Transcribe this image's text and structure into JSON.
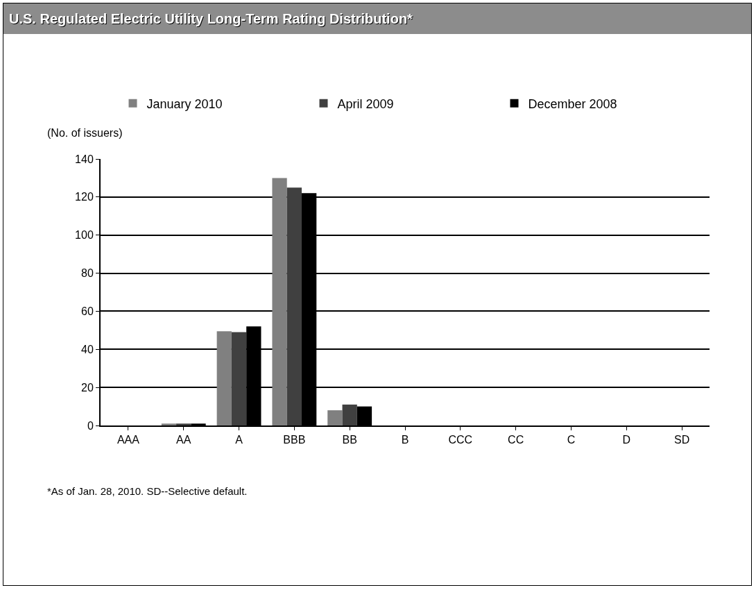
{
  "chart_data": {
    "type": "bar",
    "title": "U.S. Regulated Electric Utility Long-Term Rating Distribution*",
    "ylabel": "(No. of issuers)",
    "categories": [
      "AAA",
      "AA",
      "A",
      "BBB",
      "BB",
      "B",
      "CCC",
      "CC",
      "C",
      "D",
      "SD"
    ],
    "series": [
      {
        "name": "January 2010",
        "color": "#808080",
        "values": [
          0,
          1,
          49.5,
          130,
          8,
          0,
          0,
          0,
          0,
          0,
          0
        ]
      },
      {
        "name": "April 2009",
        "color": "#404040",
        "values": [
          0,
          1,
          49,
          125,
          11,
          0,
          0,
          0,
          0,
          0,
          0
        ]
      },
      {
        "name": "December 2008",
        "color": "#000000",
        "values": [
          0,
          1,
          52,
          122,
          10,
          0,
          0,
          0,
          0,
          0,
          0
        ]
      }
    ],
    "ylim": [
      0,
      140
    ],
    "yticks": [
      0,
      20,
      40,
      60,
      80,
      100,
      120,
      140
    ],
    "grid": "y",
    "legend": "top",
    "annotations": [
      "*As of Jan. 28, 2010. SD--Selective default."
    ]
  }
}
